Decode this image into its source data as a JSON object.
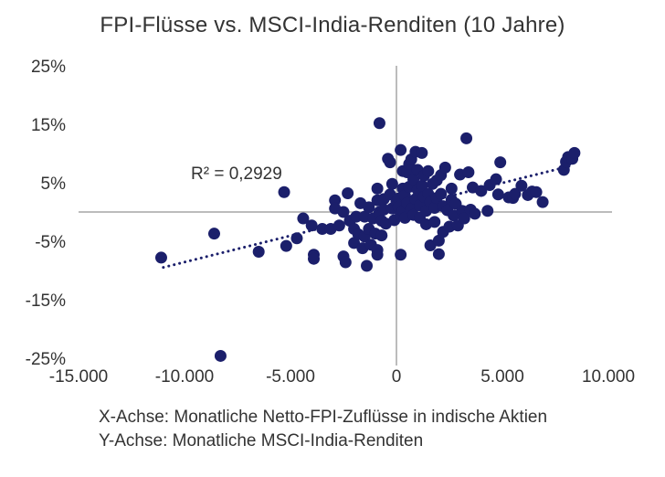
{
  "chart_data": {
    "type": "scatter",
    "title": "FPI-Flüsse vs. MSCI-India-Renditen (10 Jahre)",
    "xlim": [
      -15000,
      10000
    ],
    "ylim": [
      -25,
      25
    ],
    "x_ticks": [
      "-15.000",
      "-10.000",
      "-5.000",
      "0",
      "5.000",
      "10.000"
    ],
    "y_ticks": [
      "25%",
      "15%",
      "5%",
      "-5%",
      "-15%",
      "-25%"
    ],
    "x_tick_values": [
      -15000,
      -10000,
      -5000,
      0,
      5000,
      10000
    ],
    "y_tick_values": [
      25,
      15,
      5,
      -5,
      -15,
      -25
    ],
    "annotation": "R² = 0,2929",
    "trendline": {
      "style": "dotted",
      "x_range": [
        -11000,
        8300
      ]
    },
    "marker_color": "#1b1f6b",
    "axis_color": "#a6a6a6",
    "points": [
      [
        -11100,
        -7.8
      ],
      [
        -8600,
        -3.7
      ],
      [
        -8300,
        -24.6
      ],
      [
        -6500,
        -6.8
      ],
      [
        -5300,
        3.4
      ],
      [
        -5200,
        -5.8
      ],
      [
        -4700,
        -4.5
      ],
      [
        -4400,
        -1.1
      ],
      [
        -4000,
        -2.3
      ],
      [
        -3900,
        -7.3
      ],
      [
        -3900,
        -8.0
      ],
      [
        -3500,
        -2.9
      ],
      [
        -3100,
        -2.9
      ],
      [
        -2900,
        2.0
      ],
      [
        -2900,
        0.6
      ],
      [
        -2700,
        -2.3
      ],
      [
        -2500,
        0.0
      ],
      [
        -2500,
        -7.6
      ],
      [
        -2400,
        -8.6
      ],
      [
        -2300,
        3.2
      ],
      [
        -2200,
        -1.5
      ],
      [
        -2000,
        -2.9
      ],
      [
        -2000,
        -5.3
      ],
      [
        -1900,
        -0.8
      ],
      [
        -1800,
        -3.8
      ],
      [
        -1700,
        1.5
      ],
      [
        -1600,
        -6.2
      ],
      [
        -1500,
        -4.2
      ],
      [
        -1500,
        -0.8
      ],
      [
        -1400,
        -9.2
      ],
      [
        -1300,
        -2.9
      ],
      [
        -1300,
        0.8
      ],
      [
        -1200,
        -5.6
      ],
      [
        -1100,
        -1.1
      ],
      [
        -1000,
        -3.7
      ],
      [
        -900,
        4.0
      ],
      [
        -900,
        2.0
      ],
      [
        -900,
        -6.5
      ],
      [
        -900,
        -7.3
      ],
      [
        -800,
        15.2
      ],
      [
        -800,
        0.0
      ],
      [
        -700,
        -1.5
      ],
      [
        -700,
        -4.0
      ],
      [
        -600,
        2.2
      ],
      [
        -600,
        0.4
      ],
      [
        -500,
        -2.0
      ],
      [
        -400,
        9.1
      ],
      [
        -300,
        8.5
      ],
      [
        -300,
        3.0
      ],
      [
        -200,
        4.8
      ],
      [
        -200,
        0.6
      ],
      [
        -100,
        -1.4
      ],
      [
        0,
        1.8
      ],
      [
        100,
        2.3
      ],
      [
        100,
        0.9
      ],
      [
        200,
        10.6
      ],
      [
        200,
        -0.5
      ],
      [
        200,
        -7.3
      ],
      [
        300,
        7.0
      ],
      [
        300,
        4.0
      ],
      [
        300,
        0.2
      ],
      [
        400,
        2.8
      ],
      [
        400,
        -1.0
      ],
      [
        500,
        6.8
      ],
      [
        500,
        1.5
      ],
      [
        600,
        8.2
      ],
      [
        600,
        4.3
      ],
      [
        700,
        9.0
      ],
      [
        700,
        0.5
      ],
      [
        800,
        5.6
      ],
      [
        800,
        -0.5
      ],
      [
        900,
        10.3
      ],
      [
        900,
        2.2
      ],
      [
        1000,
        7.2
      ],
      [
        1000,
        3.8
      ],
      [
        1100,
        1.1
      ],
      [
        1100,
        -1.0
      ],
      [
        1200,
        10.1
      ],
      [
        1200,
        4.5
      ],
      [
        1300,
        6.2
      ],
      [
        1300,
        2.6
      ],
      [
        1400,
        0.2
      ],
      [
        1400,
        -2.1
      ],
      [
        1500,
        3.1
      ],
      [
        1500,
        7.0
      ],
      [
        1600,
        1.7
      ],
      [
        1600,
        -5.7
      ],
      [
        1700,
        4.8
      ],
      [
        1800,
        -1.7
      ],
      [
        1800,
        0.7
      ],
      [
        1900,
        2.4
      ],
      [
        1900,
        5.4
      ],
      [
        2000,
        -4.9
      ],
      [
        2000,
        -7.2
      ],
      [
        2100,
        3.1
      ],
      [
        2100,
        6.3
      ],
      [
        2200,
        1.0
      ],
      [
        2200,
        -3.4
      ],
      [
        2300,
        7.6
      ],
      [
        2400,
        0.3
      ],
      [
        2500,
        -2.5
      ],
      [
        2600,
        4.0
      ],
      [
        2600,
        2.1
      ],
      [
        2700,
        -0.6
      ],
      [
        2800,
        1.4
      ],
      [
        2900,
        -2.3
      ],
      [
        3000,
        6.4
      ],
      [
        3100,
        0.2
      ],
      [
        3200,
        -1.1
      ],
      [
        3300,
        12.6
      ],
      [
        3400,
        6.8
      ],
      [
        3500,
        0.4
      ],
      [
        3600,
        4.2
      ],
      [
        3700,
        -0.3
      ],
      [
        4000,
        3.6
      ],
      [
        4300,
        0.2
      ],
      [
        4400,
        4.6
      ],
      [
        4700,
        5.6
      ],
      [
        4800,
        3.0
      ],
      [
        4900,
        8.5
      ],
      [
        5300,
        2.5
      ],
      [
        5500,
        2.4
      ],
      [
        5600,
        3.1
      ],
      [
        5900,
        4.5
      ],
      [
        6200,
        2.9
      ],
      [
        6400,
        3.5
      ],
      [
        6600,
        3.4
      ],
      [
        6900,
        1.7
      ],
      [
        7900,
        7.2
      ],
      [
        8000,
        8.6
      ],
      [
        8100,
        9.4
      ],
      [
        8300,
        9.1
      ],
      [
        8400,
        10.1
      ]
    ]
  },
  "captions": {
    "x_axis": "X-Achse: Monatliche Netto-FPI-Zuflüsse in indische Aktien",
    "y_axis": "Y-Achse: Monatliche MSCI-India-Renditen"
  }
}
